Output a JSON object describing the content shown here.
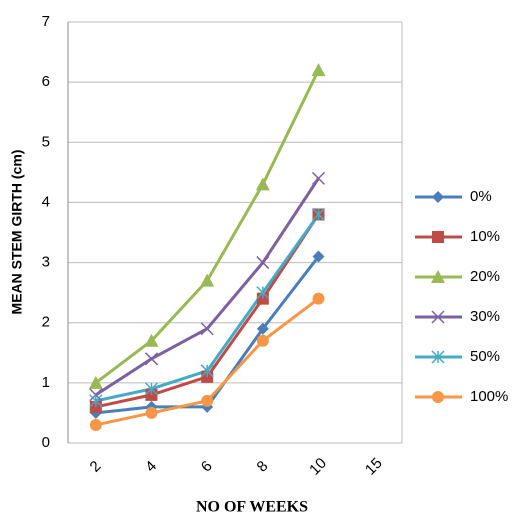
{
  "chart_data": {
    "type": "line",
    "x_label": "NO OF WEEKS",
    "y_label": "MEAN STEM GIRTH (cm)",
    "categories": [
      "2",
      "4",
      "6",
      "8",
      "10",
      "15"
    ],
    "ylim": [
      0,
      7
    ],
    "yticks": [
      0,
      1,
      2,
      3,
      4,
      5,
      6,
      7
    ],
    "grid": true,
    "legend": "right",
    "series": [
      {
        "name": "0%",
        "color": "#4a7ebb",
        "marker": "diamond",
        "values": [
          0.5,
          0.6,
          0.6,
          1.9,
          3.1,
          null
        ]
      },
      {
        "name": "10%",
        "color": "#be4b48",
        "marker": "square",
        "values": [
          0.6,
          0.8,
          1.1,
          2.4,
          3.8,
          null
        ]
      },
      {
        "name": "20%",
        "color": "#98b954",
        "marker": "triangle",
        "values": [
          1.0,
          1.7,
          2.7,
          4.3,
          6.2,
          null
        ]
      },
      {
        "name": "30%",
        "color": "#7d60a0",
        "marker": "x",
        "values": [
          0.8,
          1.4,
          1.9,
          3.0,
          4.4,
          null
        ]
      },
      {
        "name": "50%",
        "color": "#46aac5",
        "marker": "star",
        "values": [
          0.7,
          0.9,
          1.2,
          2.5,
          3.8,
          null
        ]
      },
      {
        "name": "100%",
        "color": "#f79646",
        "marker": "circle",
        "values": [
          0.3,
          0.5,
          0.7,
          1.7,
          2.4,
          null
        ]
      }
    ]
  }
}
